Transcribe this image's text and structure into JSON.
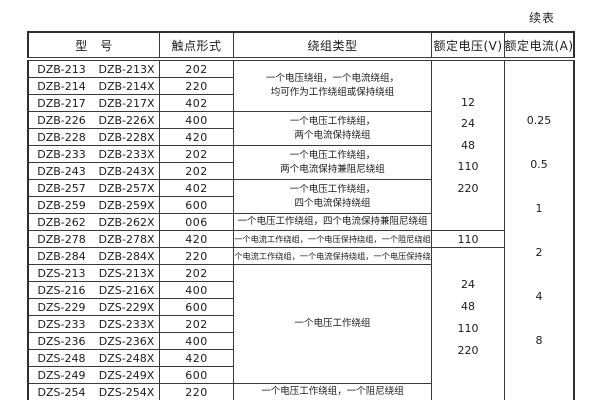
{
  "page": {
    "continuation_label": "续表"
  },
  "table": {
    "headers": {
      "model": "型　号",
      "contact_form": "触点形式",
      "winding_type": "绕组类型",
      "rated_voltage": "额定电压(V)",
      "rated_current": "额定电流(A)"
    },
    "rows": [
      {
        "model": "DZB-213",
        "model_x": "DZB-213X",
        "contact": "202"
      },
      {
        "model": "DZB-214",
        "model_x": "DZB-214X",
        "contact": "220"
      },
      {
        "model": "DZB-217",
        "model_x": "DZB-217X",
        "contact": "402"
      },
      {
        "model": "DZB-226",
        "model_x": "DZB-226X",
        "contact": "400"
      },
      {
        "model": "DZB-228",
        "model_x": "DZB-228X",
        "contact": "420"
      },
      {
        "model": "DZB-233",
        "model_x": "DZB-233X",
        "contact": "202"
      },
      {
        "model": "DZB-243",
        "model_x": "DZB-243X",
        "contact": "202"
      },
      {
        "model": "DZB-257",
        "model_x": "DZB-257X",
        "contact": "402"
      },
      {
        "model": "DZB-259",
        "model_x": "DZB-259X",
        "contact": "600"
      },
      {
        "model": "DZB-262",
        "model_x": "DZB-262X",
        "contact": "006"
      },
      {
        "model": "DZB-278",
        "model_x": "DZB-278X",
        "contact": "420"
      },
      {
        "model": "DZB-284",
        "model_x": "DZB-284X",
        "contact": "220"
      },
      {
        "model": "DZS-213",
        "model_x": "DZS-213X",
        "contact": "202"
      },
      {
        "model": "DZS-216",
        "model_x": "DZS-216X",
        "contact": "400"
      },
      {
        "model": "DZS-229",
        "model_x": "DZS-229X",
        "contact": "600"
      },
      {
        "model": "DZS-233",
        "model_x": "DZS-233X",
        "contact": "202"
      },
      {
        "model": "DZS-236",
        "model_x": "DZS-236X",
        "contact": "400"
      },
      {
        "model": "DZS-248",
        "model_x": "DZS-248X",
        "contact": "420"
      },
      {
        "model": "DZS-249",
        "model_x": "DZS-249X",
        "contact": "600"
      },
      {
        "model": "DZS-254",
        "model_x": "DZS-254X",
        "contact": "220"
      }
    ],
    "winding_groups": [
      {
        "row_start": 1,
        "row_end": 3,
        "lines": [
          "一个电压绕组，一个电流绕组，",
          "均可作为工作绕组或保持绕组"
        ]
      },
      {
        "row_start": 4,
        "row_end": 5,
        "lines": [
          "一个电压工作绕组，",
          "两个电流保持绕组"
        ]
      },
      {
        "row_start": 6,
        "row_end": 7,
        "lines": [
          "一个电压工作绕组，",
          "两个电流保持兼阻尼绕组"
        ]
      },
      {
        "row_start": 8,
        "row_end": 9,
        "lines": [
          "一个电压工作绕组，",
          "四个电流保持绕组"
        ]
      },
      {
        "row_start": 10,
        "row_end": 10,
        "lines": [
          "一个电压工作绕组，四个电流保持兼阻尼绕组"
        ]
      },
      {
        "row_start": 11,
        "row_end": 11,
        "lines": [
          "一个电流工作绕组，一个电压保持绕组，一个阻尼绕组"
        ]
      },
      {
        "row_start": 12,
        "row_end": 12,
        "lines": [
          "一个电流工作绕组，一个电流保持绕组，一个电压保持绕组"
        ]
      },
      {
        "row_start": 13,
        "row_end": 19,
        "lines": [
          "一个电压工作绕组"
        ]
      },
      {
        "row_start": 20,
        "row_end": 20,
        "lines": [
          "一个电压工作绕组，一个阻尼绕组"
        ]
      }
    ],
    "voltage_groups": [
      {
        "row_start": 1,
        "row_end": 10,
        "values": [
          "12",
          "24",
          "48",
          "110",
          "220"
        ]
      },
      {
        "row_start": 11,
        "row_end": 11,
        "values": [
          "110"
        ]
      },
      {
        "row_start": 12,
        "row_end": 20,
        "values": [
          "24",
          "48",
          "110",
          "220"
        ]
      }
    ],
    "current_group": {
      "row_start": 1,
      "row_end": 20,
      "values": [
        "0.25",
        "0.5",
        "1",
        "2",
        "4",
        "8"
      ]
    }
  },
  "colors": {
    "border": "#3a3a3a",
    "outer_border": "#2e2e2e",
    "text": "#1b1b1b",
    "background": "#ffffff"
  }
}
